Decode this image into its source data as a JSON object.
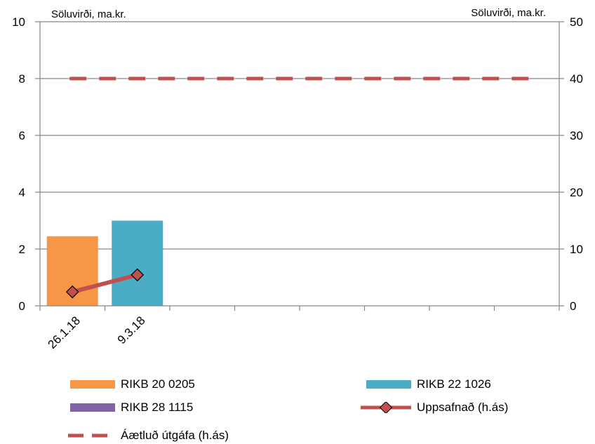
{
  "chart_data": {
    "type": "bar",
    "categories": [
      "26.1.18",
      "9.3.18",
      "",
      "",
      "",
      "",
      "",
      ""
    ],
    "left_axis": {
      "label": "Söluvirði, ma.kr.",
      "min": 0,
      "max": 10,
      "step": 2
    },
    "right_axis": {
      "label": "Söluvirði, ma.kr.",
      "min": 0,
      "max": 50,
      "step": 10
    },
    "grid": true,
    "legend_position": "bottom",
    "series": [
      {
        "name": "RIKB 20 0205",
        "kind": "bar",
        "axis": "left",
        "color": "#f79646",
        "values": [
          2.45,
          null,
          null,
          null,
          null,
          null,
          null,
          null
        ]
      },
      {
        "name": "RIKB 22 1026",
        "kind": "bar",
        "axis": "left",
        "color": "#4bacc6",
        "values": [
          null,
          3.0,
          null,
          null,
          null,
          null,
          null,
          null
        ]
      },
      {
        "name": "RIKB 28 1115",
        "kind": "bar",
        "axis": "left",
        "color": "#8064a2",
        "values": [
          null,
          null,
          null,
          null,
          null,
          null,
          null,
          null
        ]
      },
      {
        "name": "Uppsafnað (h.ás)",
        "kind": "line-marker",
        "axis": "right",
        "color": "#c0504d",
        "values": [
          2.45,
          5.45,
          null,
          null,
          null,
          null,
          null,
          null
        ]
      },
      {
        "name": "Áætluð útgáfa (h.ás)",
        "kind": "dashed-line",
        "axis": "right",
        "color": "#c0504d",
        "values": [
          40,
          40,
          40,
          40,
          40,
          40,
          40,
          40
        ]
      }
    ]
  }
}
